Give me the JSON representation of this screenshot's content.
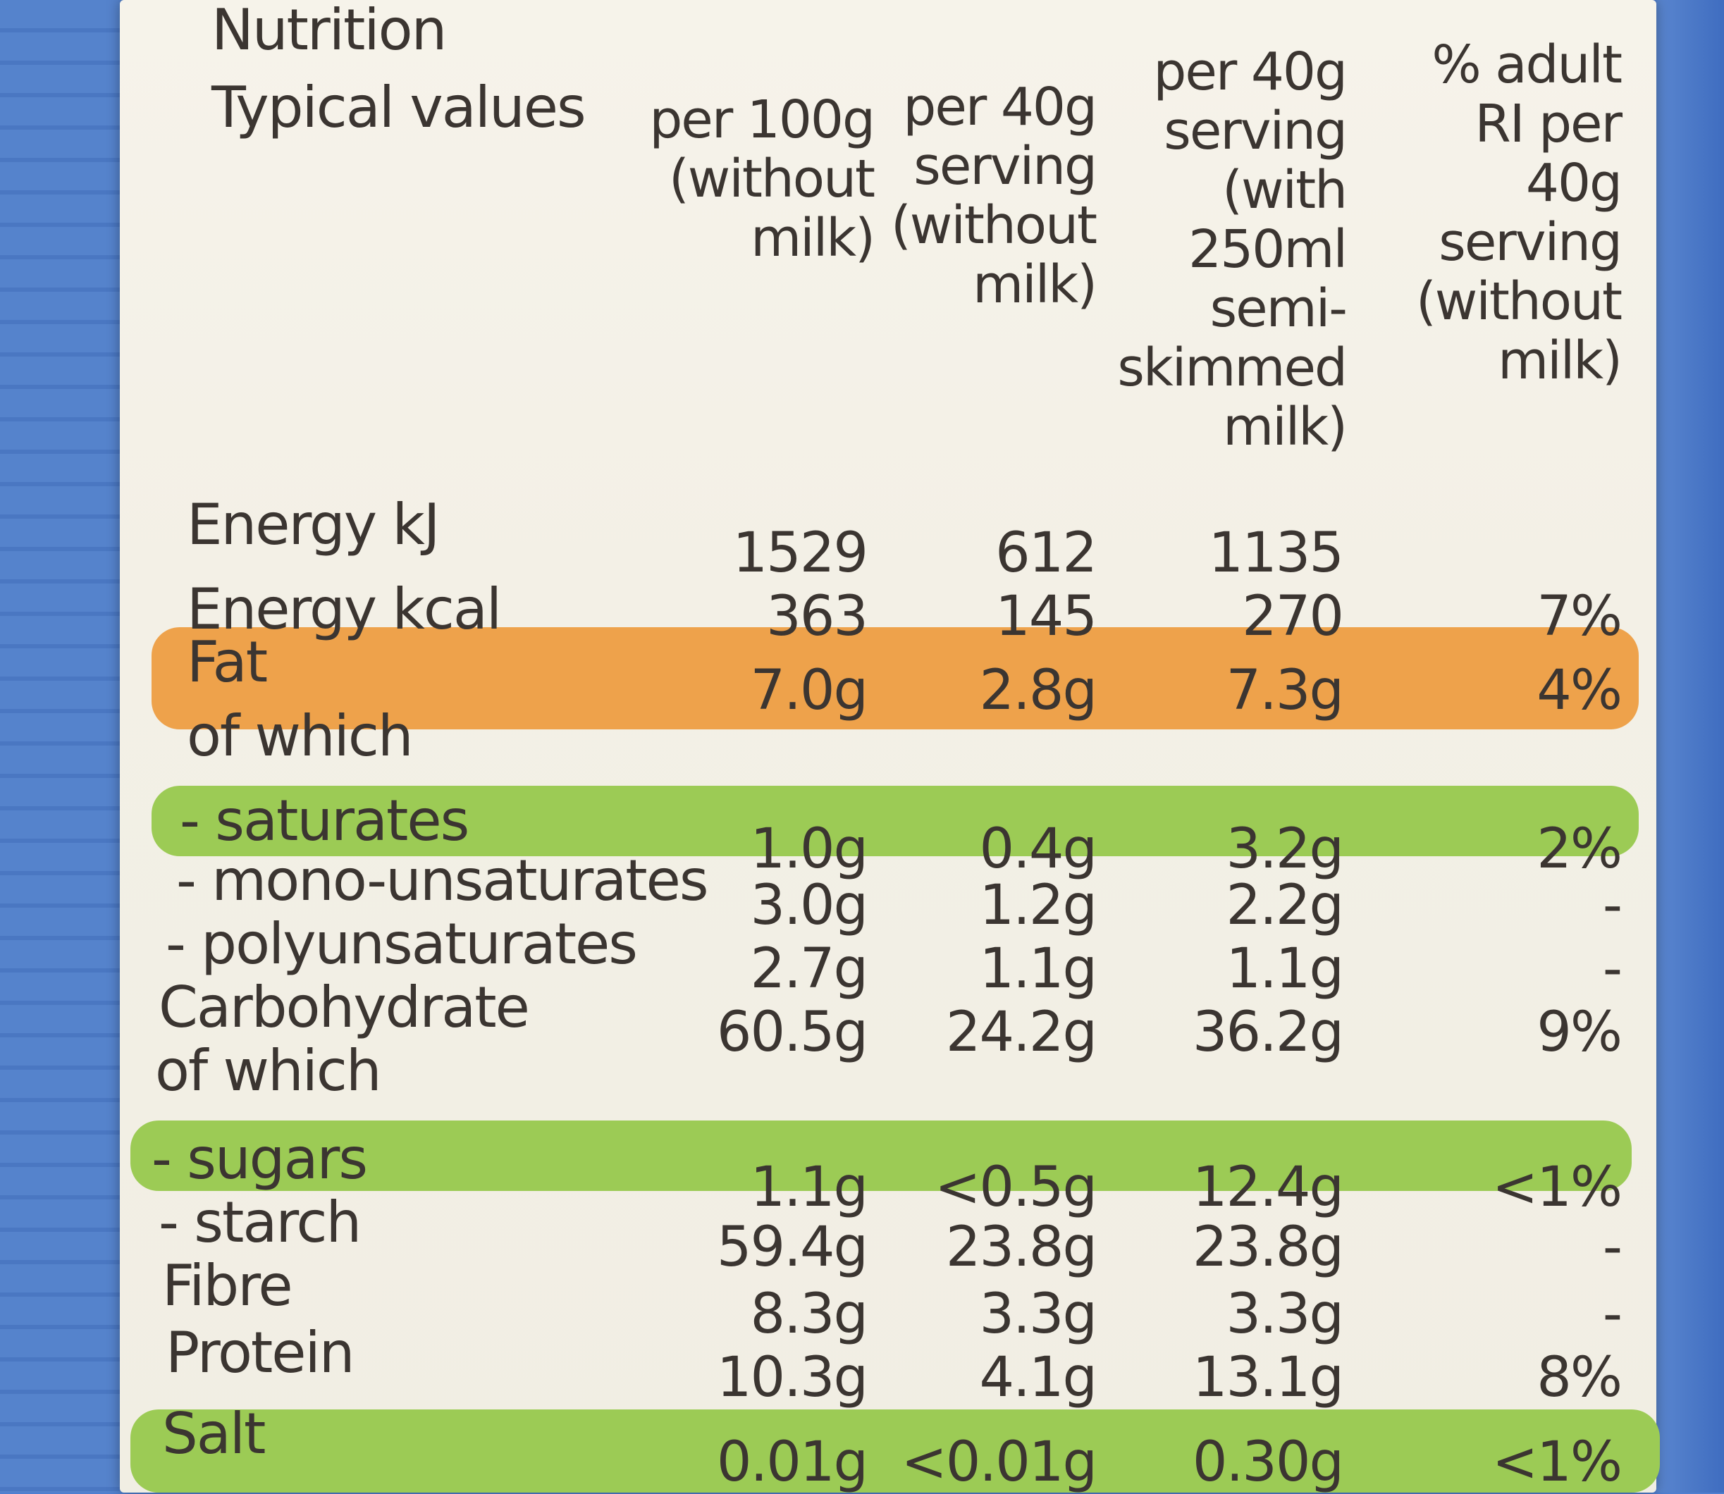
{
  "header": {
    "title": "Nutrition",
    "subtitle": "Typical values",
    "columns": [
      "per 100g (without milk)",
      "per 40g serving (without milk)",
      "per 40g serving (with 250ml semi- skimmed milk)",
      "% adult RI per 40g serving (without milk)"
    ]
  },
  "colors": {
    "fat_band": "#eea24b",
    "green_band": "#9ccb55",
    "label_bg": "#f4f1e7",
    "table_bg": "#4f7fd0"
  },
  "rows": [
    {
      "label": "Energy kJ",
      "values": [
        "1529",
        "612",
        "1135",
        ""
      ]
    },
    {
      "label": "Energy kcal",
      "values": [
        "363",
        "145",
        "270",
        "7%"
      ]
    },
    {
      "label": "Fat",
      "values": [
        "7.0g",
        "2.8g",
        "7.3g",
        "4%"
      ]
    },
    {
      "label": "of which",
      "values": [
        "",
        "",
        "",
        ""
      ]
    },
    {
      "label": "- saturates",
      "values": [
        "1.0g",
        "0.4g",
        "3.2g",
        "2%"
      ]
    },
    {
      "label": "- mono-unsaturates",
      "values": [
        "3.0g",
        "1.2g",
        "2.2g",
        "-"
      ]
    },
    {
      "label": "- polyunsaturates",
      "values": [
        "2.7g",
        "1.1g",
        "1.1g",
        "-"
      ]
    },
    {
      "label": "Carbohydrate",
      "values": [
        "60.5g",
        "24.2g",
        "36.2g",
        "9%"
      ]
    },
    {
      "label": "of which",
      "values": [
        "",
        "",
        "",
        ""
      ]
    },
    {
      "label": "- sugars",
      "values": [
        "1.1g",
        "<0.5g",
        "12.4g",
        "<1%"
      ]
    },
    {
      "label": "- starch",
      "values": [
        "59.4g",
        "23.8g",
        "23.8g",
        "-"
      ]
    },
    {
      "label": "Fibre",
      "values": [
        "8.3g",
        "3.3g",
        "3.3g",
        "-"
      ]
    },
    {
      "label": "Protein",
      "values": [
        "10.3g",
        "4.1g",
        "13.1g",
        "8%"
      ]
    },
    {
      "label": "Salt",
      "values": [
        "0.01g",
        "<0.01g",
        "0.30g",
        "<1%"
      ]
    }
  ]
}
